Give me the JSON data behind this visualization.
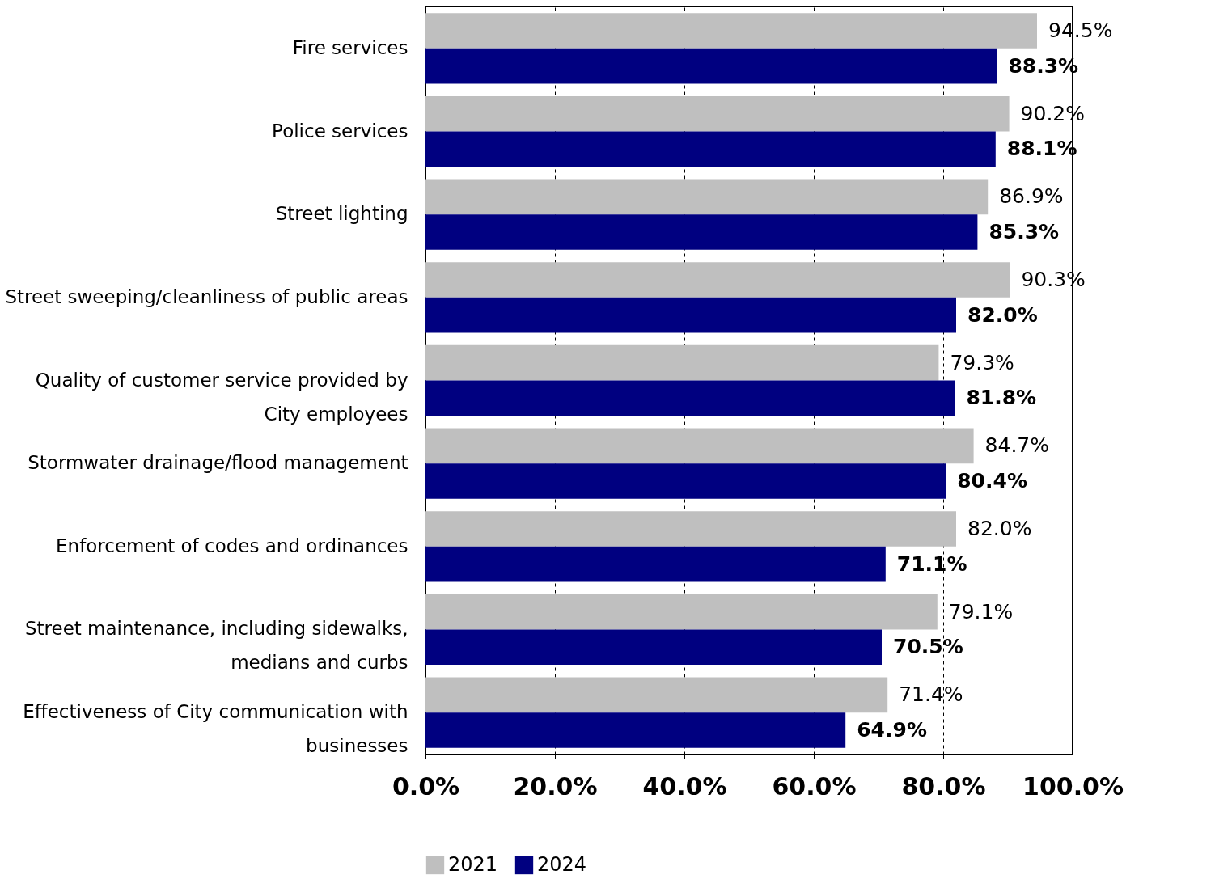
{
  "chart_data": {
    "type": "bar",
    "orientation": "horizontal",
    "categories": [
      "Fire services",
      "Police services",
      "Street lighting",
      "Street sweeping/cleanliness of public areas",
      "Quality of customer service provided by City employees",
      "Stormwater drainage/flood management",
      "Enforcement of codes and ordinances",
      "Street maintenance, including sidewalks, medians and curbs",
      "Effectiveness of City communication with businesses"
    ],
    "series": [
      {
        "name": "2021",
        "color": "#bfbfbf",
        "values": [
          94.5,
          90.2,
          86.9,
          90.3,
          79.3,
          84.7,
          82.0,
          79.1,
          71.4
        ]
      },
      {
        "name": "2024",
        "color": "#000080",
        "values": [
          88.3,
          88.1,
          85.3,
          82.0,
          81.8,
          80.4,
          71.1,
          70.5,
          64.9
        ]
      }
    ],
    "value_labels": [
      [
        "94.5%",
        "90.2%",
        "86.9%",
        "90.3%",
        "79.3%",
        "84.7%",
        "82.0%",
        "79.1%",
        "71.4%"
      ],
      [
        "88.3%",
        "88.1%",
        "85.3%",
        "82.0%",
        "81.8%",
        "80.4%",
        "71.1%",
        "70.5%",
        "64.9%"
      ]
    ],
    "xlim": [
      0,
      100
    ],
    "xticks": [
      {
        "value": 0,
        "label": "0.0%"
      },
      {
        "value": 20,
        "label": "20.0%"
      },
      {
        "value": 40,
        "label": "40.0%"
      },
      {
        "value": 60,
        "label": "60.0%"
      },
      {
        "value": 80,
        "label": "80.0%"
      },
      {
        "value": 100,
        "label": "100.0%"
      }
    ],
    "grid": "x",
    "legend": "bottom"
  }
}
